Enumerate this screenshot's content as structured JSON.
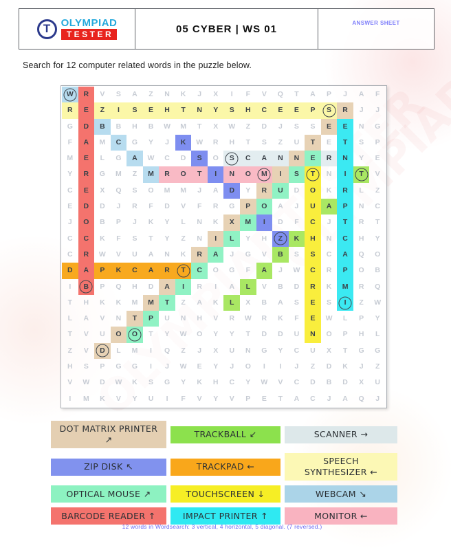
{
  "header": {
    "brand_top": "OLYMPIAD",
    "brand_bottom": "TESTER",
    "logo_letter": "T",
    "title": "05 CYBER | WS 01",
    "answer_sheet": "ANSWER SHEET"
  },
  "instruction": "Search for 12 computer related words in the puzzle below.",
  "grid": {
    "rows_count": 20,
    "cols_count": 20,
    "rows": [
      "WRVSAZNKJXIFVQTAPJAF",
      "REZISEHTNYSHCEEPSRJJ",
      "GDBBHBWMTXWZDJSSEENG",
      "FAMCGYJKWRHTSZUTETSP",
      "MELGAWCDSOSCANNERNYE",
      "YRGMZMROTINOMISTNITV",
      "CEXQSOMMJADYRUDOKRLZ",
      "EDDJRFDVFRGPOAJUAPNC",
      "JOBPJKYLNKXMIDFCJTRT",
      "CCKFSTYZNILYHZKHNCHY",
      "CRWVUANKRAJGVBSSCAQO",
      "DAPKCARTCOGFAJWCRPOB",
      "IBPQHDAIRIALVBDRKMRQ",
      "THKKMMTZAKLXBASESIZW",
      "LAVNTPUNHVRWRKFEWLPY",
      "TVUOOTYWOYYTDDUNOPHL",
      "ZVDLMIQZJXUNGYCUXTGG",
      "HSPGGIJWEYJOIIJZDKJZ",
      "VWDWKSGYKHCYWVCDBDXU",
      "IMKVYUIFVYVPETACJAQJ"
    ],
    "words": [
      {
        "id": "scanner",
        "word": "SCANNER",
        "direction": "right",
        "color": "#e3edf0",
        "cells": [
          [
            5,
            11
          ],
          [
            5,
            12
          ],
          [
            5,
            13
          ],
          [
            5,
            14
          ],
          [
            5,
            15
          ],
          [
            5,
            16
          ],
          [
            5,
            17
          ]
        ],
        "circle": [
          5,
          11
        ]
      },
      {
        "id": "monitor",
        "word": "MONITOR",
        "direction": "left",
        "color": "#f9bac5",
        "cells": [
          [
            6,
            7
          ],
          [
            6,
            8
          ],
          [
            6,
            9
          ],
          [
            6,
            10
          ],
          [
            6,
            11
          ],
          [
            6,
            12
          ],
          [
            6,
            13
          ]
        ],
        "circle": [
          6,
          13
        ]
      },
      {
        "id": "speech-synthesizer",
        "word": "SPEECH SYNTHESIZER",
        "direction": "left",
        "color": "#fbf7a8",
        "cells": [
          [
            2,
            1
          ],
          [
            2,
            2
          ],
          [
            2,
            3
          ],
          [
            2,
            4
          ],
          [
            2,
            5
          ],
          [
            2,
            6
          ],
          [
            2,
            7
          ],
          [
            2,
            8
          ],
          [
            2,
            9
          ],
          [
            2,
            10
          ],
          [
            2,
            11
          ],
          [
            2,
            12
          ],
          [
            2,
            13
          ],
          [
            2,
            14
          ],
          [
            2,
            15
          ],
          [
            2,
            16
          ],
          [
            2,
            17
          ]
        ],
        "circle": [
          2,
          17
        ]
      },
      {
        "id": "webcam",
        "word": "WEBCAM",
        "direction": "down-right",
        "color": "#b7dcef",
        "cells": [
          [
            1,
            1
          ],
          [
            2,
            2
          ],
          [
            3,
            3
          ],
          [
            4,
            4
          ],
          [
            5,
            5
          ],
          [
            6,
            6
          ]
        ],
        "circle": [
          1,
          1
        ]
      },
      {
        "id": "trackball",
        "word": "TRACKBALL",
        "direction": "down-left",
        "color": "#a9e763",
        "cells": [
          [
            6,
            19
          ],
          [
            7,
            18
          ],
          [
            8,
            17
          ],
          [
            9,
            16
          ],
          [
            10,
            15
          ],
          [
            11,
            14
          ],
          [
            12,
            13
          ],
          [
            13,
            12
          ],
          [
            14,
            11
          ]
        ],
        "circle": [
          6,
          19
        ]
      },
      {
        "id": "touchscreen",
        "word": "TOUCHSCREEN",
        "direction": "down",
        "color": "#f9ee3d",
        "cells": [
          [
            6,
            16
          ],
          [
            7,
            16
          ],
          [
            8,
            16
          ],
          [
            9,
            16
          ],
          [
            10,
            16
          ],
          [
            11,
            16
          ],
          [
            12,
            16
          ],
          [
            13,
            16
          ],
          [
            14,
            16
          ],
          [
            15,
            16
          ],
          [
            16,
            16
          ]
        ],
        "circle": [
          6,
          16
        ]
      },
      {
        "id": "impact-printer",
        "word": "IMPACT PRINTER",
        "direction": "up",
        "color": "#3be9f2",
        "cells": [
          [
            2,
            18
          ],
          [
            3,
            18
          ],
          [
            4,
            18
          ],
          [
            5,
            18
          ],
          [
            6,
            18
          ],
          [
            7,
            18
          ],
          [
            8,
            18
          ],
          [
            9,
            18
          ],
          [
            10,
            18
          ],
          [
            11,
            18
          ],
          [
            12,
            18
          ],
          [
            13,
            18
          ],
          [
            14,
            18
          ]
        ],
        "circle": [
          14,
          18
        ]
      },
      {
        "id": "zip-disk",
        "word": "ZIP DISK",
        "direction": "up-left",
        "color": "#7e8ef0",
        "cells": [
          [
            4,
            8
          ],
          [
            5,
            9
          ],
          [
            6,
            10
          ],
          [
            7,
            11
          ],
          [
            8,
            12
          ],
          [
            9,
            13
          ],
          [
            10,
            14
          ]
        ],
        "circle": [
          10,
          14
        ]
      },
      {
        "id": "optical-mouse",
        "word": "OPTICAL MOUSE",
        "direction": "up-right",
        "color": "#90f2c4",
        "cells": [
          [
            16,
            5
          ],
          [
            15,
            6
          ],
          [
            14,
            7
          ],
          [
            13,
            8
          ],
          [
            12,
            9
          ],
          [
            11,
            10
          ],
          [
            10,
            11
          ],
          [
            9,
            12
          ],
          [
            8,
            13
          ],
          [
            7,
            14
          ],
          [
            6,
            15
          ],
          [
            5,
            16
          ]
        ],
        "circle": [
          16,
          5
        ]
      },
      {
        "id": "dot-matrix-printer",
        "word": "DOT MATRIX PRINTER",
        "direction": "up-right",
        "color": "#e7d2b5",
        "cells": [
          [
            17,
            3
          ],
          [
            16,
            4
          ],
          [
            15,
            5
          ],
          [
            14,
            6
          ],
          [
            13,
            7
          ],
          [
            12,
            8
          ],
          [
            11,
            9
          ],
          [
            10,
            10
          ],
          [
            9,
            11
          ],
          [
            8,
            12
          ],
          [
            7,
            13
          ],
          [
            6,
            14
          ],
          [
            5,
            15
          ],
          [
            4,
            16
          ],
          [
            3,
            17
          ],
          [
            2,
            18
          ]
        ],
        "circle": [
          17,
          3
        ]
      },
      {
        "id": "trackpad",
        "word": "TRACKPAD",
        "direction": "left",
        "color": "#f8a91f",
        "cells": [
          [
            12,
            1
          ],
          [
            12,
            2
          ],
          [
            12,
            3
          ],
          [
            12,
            4
          ],
          [
            12,
            5
          ],
          [
            12,
            6
          ],
          [
            12,
            7
          ],
          [
            12,
            8
          ]
        ],
        "circle": [
          12,
          8
        ]
      },
      {
        "id": "barcode-reader",
        "word": "BARCODE READER",
        "direction": "up",
        "color": "#f4736d",
        "cells": [
          [
            1,
            2
          ],
          [
            2,
            2
          ],
          [
            3,
            2
          ],
          [
            4,
            2
          ],
          [
            5,
            2
          ],
          [
            6,
            2
          ],
          [
            7,
            2
          ],
          [
            8,
            2
          ],
          [
            9,
            2
          ],
          [
            10,
            2
          ],
          [
            11,
            2
          ],
          [
            12,
            2
          ],
          [
            13,
            2
          ]
        ],
        "circle": [
          13,
          2
        ]
      }
    ]
  },
  "legend": [
    {
      "id": "dot-matrix-printer",
      "lines": [
        "DOT MATRIX PRINTER",
        "↗"
      ],
      "color": "#e4cfb2"
    },
    {
      "id": "trackball",
      "lines": [
        "TRACKBALL ↙"
      ],
      "color": "#8ce14d"
    },
    {
      "id": "scanner",
      "lines": [
        "SCANNER →"
      ],
      "color": "#dde8ea"
    },
    {
      "id": "zip-disk",
      "lines": [
        "ZIP DISK ↖"
      ],
      "color": "#8192ee"
    },
    {
      "id": "trackpad",
      "lines": [
        "TRACKPAD ←"
      ],
      "color": "#f9a71b"
    },
    {
      "id": "speech-synthesizer",
      "lines": [
        "SPEECH",
        "SYNTHESIZER ←"
      ],
      "color": "#fcf8b5"
    },
    {
      "id": "optical-mouse",
      "lines": [
        "OPTICAL MOUSE ↗"
      ],
      "color": "#8df2c1"
    },
    {
      "id": "touchscreen",
      "lines": [
        "TOUCHSCREEN ↓"
      ],
      "color": "#f6ee25"
    },
    {
      "id": "webcam",
      "lines": [
        "WEBCAM ↘"
      ],
      "color": "#abd4e8"
    },
    {
      "id": "barcode-reader",
      "lines": [
        "BARCODE READER ↑"
      ],
      "color": "#f4736d"
    },
    {
      "id": "impact-printer",
      "lines": [
        "IMPACT PRINTER ↑"
      ],
      "color": "#2fe9f2"
    },
    {
      "id": "monitor",
      "lines": [
        "MONITOR ←"
      ],
      "color": "#f9b3c0"
    }
  ],
  "footer": "12 words in Wordsearch: 3 vertical, 4 horizontal, 5 diagonal. (7 reversed.)",
  "watermark_text": "OLYMPIADTESTER"
}
